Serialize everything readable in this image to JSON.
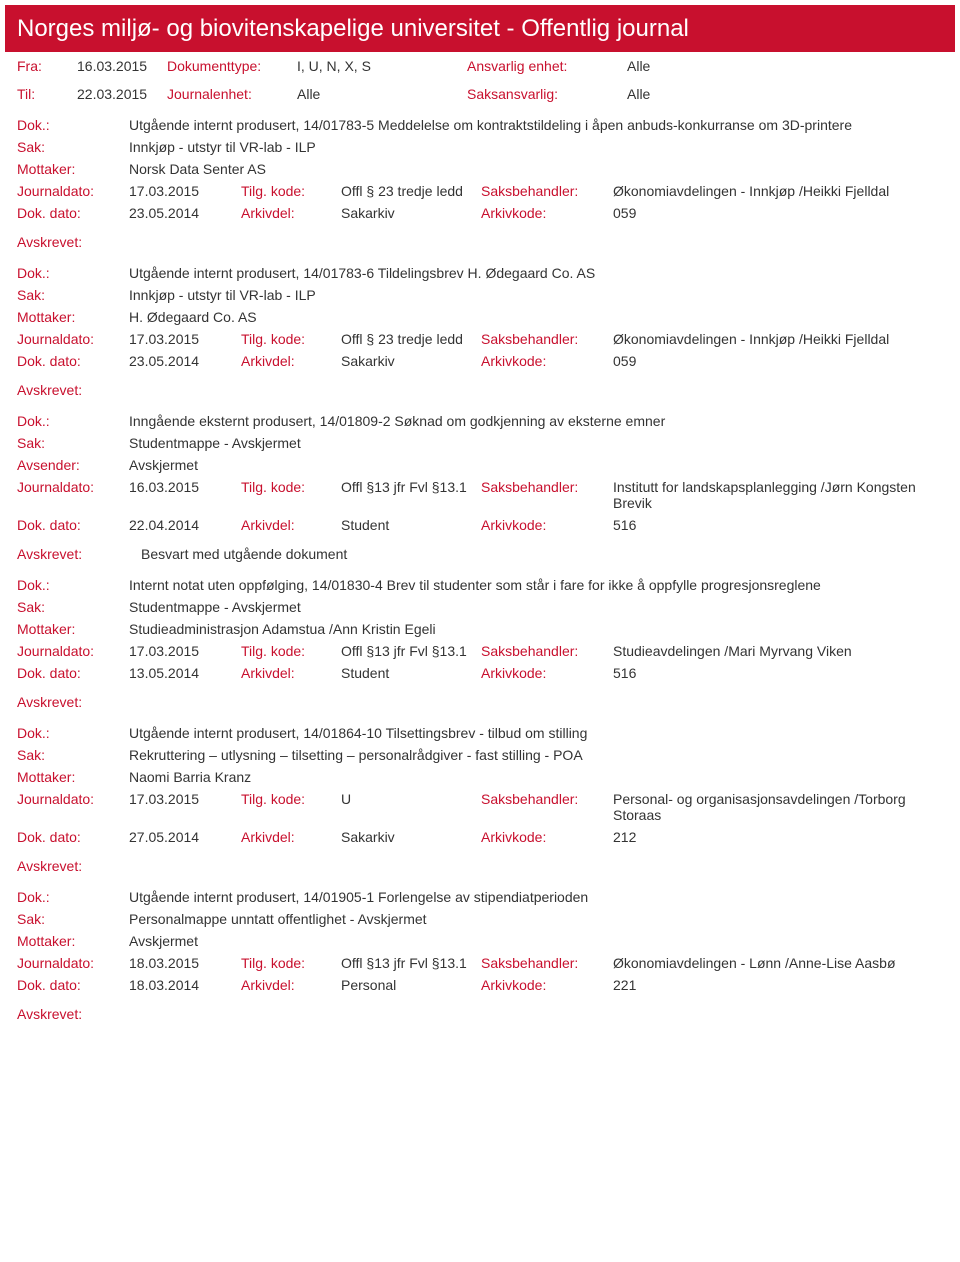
{
  "header": {
    "title": "Norges miljø- og biovitenskapelige universitet - Offentlig journal"
  },
  "filters": {
    "row1": {
      "fra_lbl": "Fra:",
      "fra": "16.03.2015",
      "doktype_lbl": "Dokumenttype:",
      "doktype": "I, U, N, X, S",
      "ansvarlig_lbl": "Ansvarlig enhet:",
      "ansvarlig": "Alle"
    },
    "row2": {
      "til_lbl": "Til:",
      "til": "22.03.2015",
      "journalenhet_lbl": "Journalenhet:",
      "journalenhet": "Alle",
      "saksansvarlig_lbl": "Saksansvarlig:",
      "saksansvarlig": "Alle"
    }
  },
  "labels": {
    "dok": "Dok.:",
    "sak": "Sak:",
    "mottaker": "Mottaker:",
    "avsender": "Avsender:",
    "journaldato": "Journaldato:",
    "tilgkode": "Tilg. kode:",
    "saksbehandler": "Saksbehandler:",
    "dokdato": "Dok. dato:",
    "arkivdel": "Arkivdel:",
    "arkivkode": "Arkivkode:",
    "avskrevet": "Avskrevet:"
  },
  "entries": [
    {
      "dok": "Utgående internt produsert, 14/01783-5 Meddelelse om kontraktstildeling i åpen anbuds-konkurranse om 3D-printere",
      "sak": "Innkjøp - utstyr til VR-lab - ILP",
      "party_lbl": "Mottaker:",
      "party": "Norsk Data Senter AS",
      "journaldato": "17.03.2015",
      "tilgkode": "Offl § 23 tredje ledd",
      "saksbehandler": "Økonomiavdelingen - Innkjøp /Heikki Fjelldal",
      "dokdato": "23.05.2014",
      "arkivdel": "Sakarkiv",
      "arkivkode": "059",
      "avskrevet": ""
    },
    {
      "dok": "Utgående internt produsert, 14/01783-6 Tildelingsbrev H. Ødegaard Co. AS",
      "sak": "Innkjøp - utstyr til VR-lab - ILP",
      "party_lbl": "Mottaker:",
      "party": "H. Ødegaard Co. AS",
      "journaldato": "17.03.2015",
      "tilgkode": "Offl § 23 tredje ledd",
      "saksbehandler": "Økonomiavdelingen - Innkjøp /Heikki Fjelldal",
      "dokdato": "23.05.2014",
      "arkivdel": "Sakarkiv",
      "arkivkode": "059",
      "avskrevet": ""
    },
    {
      "dok": "Inngående eksternt produsert, 14/01809-2 Søknad om godkjenning av eksterne emner",
      "sak": "Studentmappe - Avskjermet",
      "party_lbl": "Avsender:",
      "party": "Avskjermet",
      "journaldato": "16.03.2015",
      "tilgkode": "Offl §13 jfr Fvl §13.1",
      "saksbehandler": "Institutt for landskapsplanlegging /Jørn Kongsten Brevik",
      "dokdato": "22.04.2014",
      "arkivdel": "Student",
      "arkivkode": "516",
      "avskrevet": "Besvart med utgående dokument"
    },
    {
      "dok": "Internt notat uten oppfølging, 14/01830-4 Brev til studenter som står i fare for ikke å oppfylle progresjonsreglene",
      "sak": "Studentmappe - Avskjermet",
      "party_lbl": "Mottaker:",
      "party": "Studieadministrasjon Adamstua /Ann Kristin Egeli",
      "journaldato": "17.03.2015",
      "tilgkode": "Offl §13 jfr Fvl §13.1",
      "saksbehandler": "Studieavdelingen /Mari Myrvang Viken",
      "dokdato": "13.05.2014",
      "arkivdel": "Student",
      "arkivkode": "516",
      "avskrevet": ""
    },
    {
      "dok": "Utgående internt produsert, 14/01864-10 Tilsettingsbrev - tilbud om stilling",
      "sak": "Rekruttering – utlysning – tilsetting – personalrådgiver - fast stilling - POA",
      "party_lbl": "Mottaker:",
      "party": "Naomi Barria  Kranz",
      "journaldato": "17.03.2015",
      "tilgkode": "U",
      "saksbehandler": "Personal- og organisasjonsavdelingen /Torborg Storaas",
      "dokdato": "27.05.2014",
      "arkivdel": "Sakarkiv",
      "arkivkode": "212",
      "avskrevet": ""
    },
    {
      "dok": "Utgående internt produsert, 14/01905-1 Forlengelse av stipendiatperioden",
      "sak": "Personalmappe unntatt offentlighet - Avskjermet",
      "party_lbl": "Mottaker:",
      "party": "Avskjermet",
      "journaldato": "18.03.2015",
      "tilgkode": "Offl §13 jfr Fvl §13.1",
      "saksbehandler": "Økonomiavdelingen - Lønn /Anne-Lise Aasbø",
      "dokdato": "18.03.2014",
      "arkivdel": "Personal",
      "arkivkode": "221",
      "avskrevet": ""
    }
  ]
}
